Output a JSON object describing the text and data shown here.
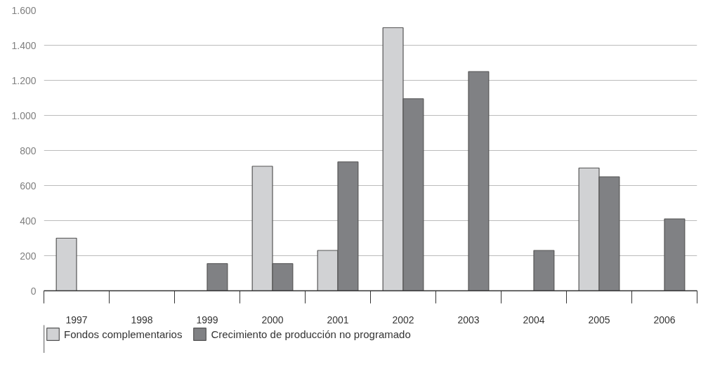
{
  "chart_data": {
    "type": "bar",
    "categories": [
      "1997",
      "1998",
      "1999",
      "2000",
      "2001",
      "2002",
      "2003",
      "2004",
      "2005",
      "2006"
    ],
    "series": [
      {
        "name": "Fondos complementarios",
        "color": "#d1d2d4",
        "values": [
          300,
          null,
          null,
          710,
          230,
          1500,
          null,
          null,
          700,
          null
        ]
      },
      {
        "name": "Crecimiento de producción no programado",
        "color": "#808184",
        "values": [
          null,
          null,
          155,
          155,
          735,
          1095,
          1250,
          230,
          650,
          410
        ]
      }
    ],
    "ylim": [
      0,
      1600
    ],
    "yticks": [
      0,
      200,
      400,
      600,
      800,
      {
        "value": 1000,
        "label": "1.000"
      },
      {
        "value": 1200,
        "label": "1.200"
      },
      {
        "value": 1400,
        "label": "1.400"
      },
      {
        "value": 1600,
        "label": "1.600"
      }
    ],
    "grid": "y",
    "legend": "bottom left"
  }
}
